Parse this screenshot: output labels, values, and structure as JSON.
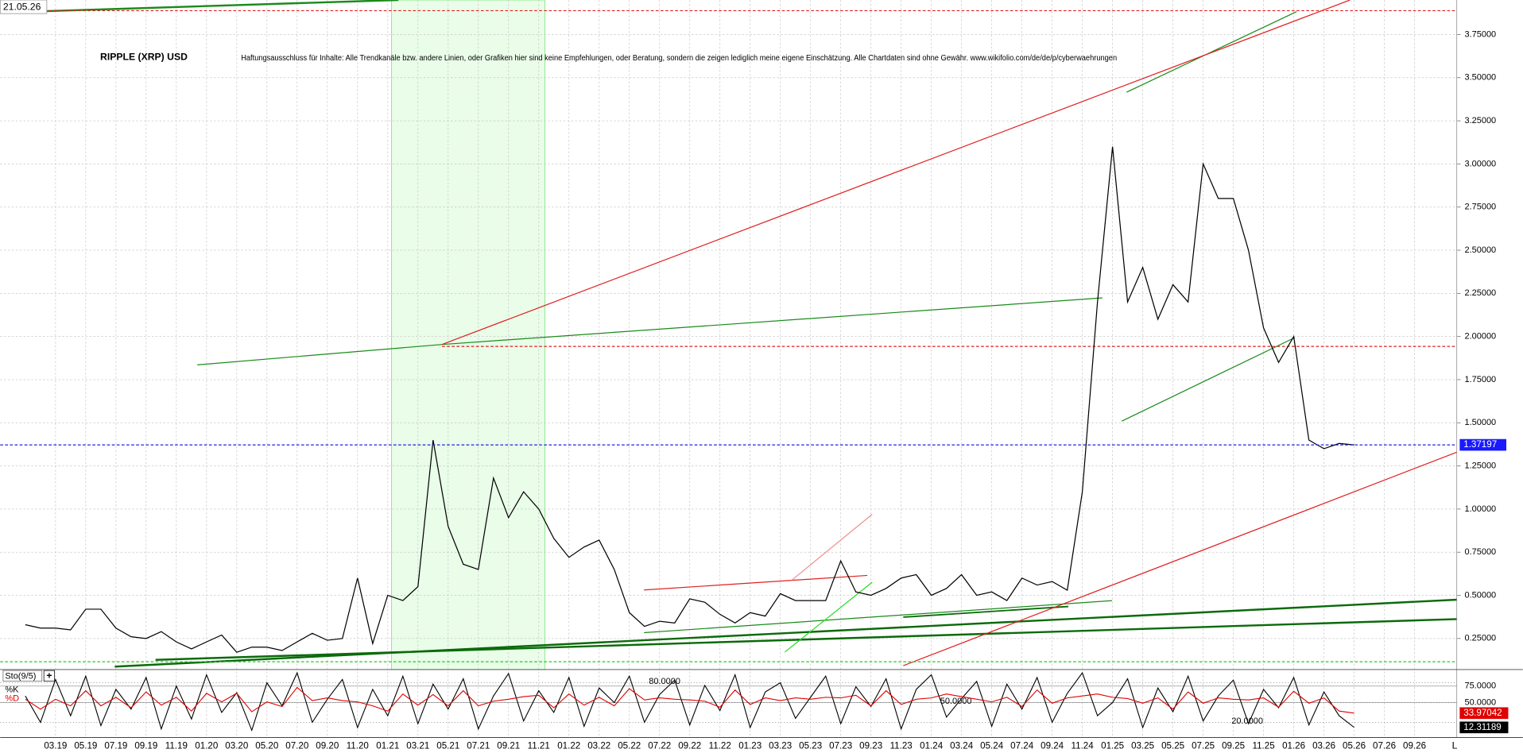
{
  "header": {
    "timestamp": "21.05.26"
  },
  "footer_label": "L",
  "chart_data": [
    {
      "type": "line",
      "title": "RIPPLE (XRP) USD",
      "annotation": "Haftungsausschluss für Inhalte: Alle Trendkanäle bzw. andere Linien, oder Grafiken hier sind keine Empfehlungen, oder Beratung, sondern die zeigen lediglich meine eigene Einschätzung. Alle Chartdaten sind ohne Gewähr.  www.wikifolio.com/de/de/p/cyberwaehrungen",
      "color": "#000000",
      "grid": true,
      "x": [
        "01.19",
        "02.19",
        "03.19",
        "04.19",
        "05.19",
        "06.19",
        "07.19",
        "08.19",
        "09.19",
        "10.19",
        "11.19",
        "12.19",
        "01.20",
        "02.20",
        "03.20",
        "04.20",
        "05.20",
        "06.20",
        "07.20",
        "08.20",
        "09.20",
        "10.20",
        "11.20",
        "12.20",
        "01.21",
        "02.21",
        "03.21",
        "04.21",
        "05.21",
        "06.21",
        "07.21",
        "08.21",
        "09.21",
        "10.21",
        "11.21",
        "12.21",
        "01.22",
        "02.22",
        "03.22",
        "04.22",
        "05.22",
        "06.22",
        "07.22",
        "08.22",
        "09.22",
        "10.22",
        "11.22",
        "12.22",
        "01.23",
        "02.23",
        "03.23",
        "04.23",
        "05.23",
        "06.23",
        "07.23",
        "08.23",
        "09.23",
        "10.23",
        "11.23",
        "12.23",
        "01.24",
        "02.24",
        "03.24",
        "04.24",
        "05.24",
        "06.24",
        "07.24",
        "08.24",
        "09.24",
        "10.24",
        "11.24",
        "12.24",
        "01.25",
        "02.25",
        "03.25",
        "04.25",
        "05.25",
        "06.25",
        "07.25",
        "08.25",
        "09.25",
        "10.25",
        "11.25",
        "12.25",
        "01.26",
        "02.26",
        "03.26",
        "04.26",
        "05.26"
      ],
      "values": [
        0.33,
        0.31,
        0.31,
        0.3,
        0.42,
        0.42,
        0.31,
        0.26,
        0.25,
        0.29,
        0.23,
        0.19,
        0.23,
        0.27,
        0.17,
        0.2,
        0.2,
        0.18,
        0.23,
        0.28,
        0.24,
        0.25,
        0.6,
        0.22,
        0.5,
        0.47,
        0.55,
        1.4,
        0.9,
        0.68,
        0.65,
        1.18,
        0.95,
        1.1,
        1.0,
        0.83,
        0.72,
        0.78,
        0.82,
        0.65,
        0.4,
        0.32,
        0.35,
        0.34,
        0.48,
        0.46,
        0.39,
        0.34,
        0.4,
        0.38,
        0.51,
        0.47,
        0.47,
        0.47,
        0.7,
        0.52,
        0.5,
        0.54,
        0.6,
        0.62,
        0.5,
        0.54,
        0.62,
        0.5,
        0.52,
        0.47,
        0.6,
        0.56,
        0.58,
        0.53,
        1.1,
        2.2,
        3.1,
        2.2,
        2.4,
        2.1,
        2.3,
        2.2,
        3.0,
        2.8,
        2.8,
        2.5,
        2.05,
        1.85,
        2.0,
        1.4,
        1.35,
        1.38,
        1.37197
      ],
      "last_value": 1.37197,
      "ylim": [
        0.07,
        3.95
      ],
      "yticks": [
        {
          "value": 3.75,
          "label": "3.75000"
        },
        {
          "value": 3.5,
          "label": "3.50000"
        },
        {
          "value": 3.25,
          "label": "3.25000"
        },
        {
          "value": 3.0,
          "label": "3.00000"
        },
        {
          "value": 2.75,
          "label": "2.75000"
        },
        {
          "value": 2.5,
          "label": "2.50000"
        },
        {
          "value": 2.25,
          "label": "2.25000"
        },
        {
          "value": 2.0,
          "label": "2.00000"
        },
        {
          "value": 1.75,
          "label": "1.75000"
        },
        {
          "value": 1.5,
          "label": "1.50000"
        },
        {
          "value": 1.25,
          "label": "1.25000"
        },
        {
          "value": 1.0,
          "label": "1.00000"
        },
        {
          "value": 0.75,
          "label": "0.75000"
        },
        {
          "value": 0.5,
          "label": "0.50000"
        },
        {
          "value": 0.25,
          "label": "0.25000"
        }
      ],
      "xticks": [
        "03.19",
        "05.19",
        "07.19",
        "09.19",
        "11.19",
        "01.20",
        "03.20",
        "05.20",
        "07.20",
        "09.20",
        "11.20",
        "01.21",
        "03.21",
        "05.21",
        "07.21",
        "09.21",
        "11.21",
        "01.22",
        "03.22",
        "05.22",
        "07.22",
        "09.22",
        "11.22",
        "01.23",
        "03.23",
        "05.23",
        "07.23",
        "09.23",
        "11.23",
        "01.24",
        "03.24",
        "05.24",
        "07.24",
        "09.24",
        "11.24",
        "01.25",
        "03.25",
        "05.25",
        "07.25",
        "09.25",
        "11.25",
        "01.26",
        "03.26",
        "05.26",
        "07.26",
        "09.26"
      ]
    },
    {
      "type": "stochastic",
      "title": "Sto(9/5)",
      "x": [
        "01.19",
        "02.19",
        "03.19",
        "04.19",
        "05.19",
        "06.19",
        "07.19",
        "08.19",
        "09.19",
        "10.19",
        "11.19",
        "12.19",
        "01.20",
        "02.20",
        "03.20",
        "04.20",
        "05.20",
        "06.20",
        "07.20",
        "08.20",
        "09.20",
        "10.20",
        "11.20",
        "12.20",
        "01.21",
        "02.21",
        "03.21",
        "04.21",
        "05.21",
        "06.21",
        "07.21",
        "08.21",
        "09.21",
        "10.21",
        "11.21",
        "12.21",
        "01.22",
        "02.22",
        "03.22",
        "04.22",
        "05.22",
        "06.22",
        "07.22",
        "08.22",
        "09.22",
        "10.22",
        "11.22",
        "12.22",
        "01.23",
        "02.23",
        "03.23",
        "04.23",
        "05.23",
        "06.23",
        "07.23",
        "08.23",
        "09.23",
        "10.23",
        "11.23",
        "12.23",
        "01.24",
        "02.24",
        "03.24",
        "04.24",
        "05.24",
        "06.24",
        "07.24",
        "08.24",
        "09.24",
        "10.24",
        "11.24",
        "12.24",
        "01.25",
        "02.25",
        "03.25",
        "04.25",
        "05.25",
        "06.25",
        "07.25",
        "08.25",
        "09.25",
        "10.25",
        "11.25",
        "12.25",
        "01.26",
        "02.26",
        "03.26",
        "04.26",
        "05.26"
      ],
      "series": [
        {
          "name": "%K",
          "color": "#000000",
          "last_value": 12.31189,
          "values": [
            60,
            20,
            85,
            30,
            90,
            15,
            70,
            40,
            88,
            10,
            75,
            25,
            92,
            35,
            65,
            8,
            80,
            45,
            95,
            20,
            55,
            85,
            12,
            70,
            30,
            90,
            18,
            78,
            40,
            86,
            10,
            60,
            94,
            22,
            68,
            35,
            88,
            14,
            72,
            50,
            90,
            20,
            62,
            84,
            16,
            76,
            38,
            92,
            12,
            66,
            80,
            26,
            58,
            90,
            18,
            74,
            44,
            86,
            10,
            70,
            92,
            28,
            56,
            82,
            14,
            78,
            40,
            88,
            20,
            64,
            95,
            30,
            50,
            86,
            12,
            72,
            36,
            90,
            22,
            60,
            84,
            18,
            70,
            42,
            88,
            16,
            66,
            30,
            12.31189
          ]
        },
        {
          "name": "%D",
          "color": "#e00000",
          "last_value": 33.97042,
          "values": [
            55,
            40,
            55,
            45,
            68,
            45,
            58,
            42,
            66,
            46,
            58,
            37,
            64,
            51,
            64,
            36,
            51,
            44,
            73,
            53,
            57,
            53,
            51,
            45,
            37,
            63,
            46,
            62,
            45,
            68,
            45,
            52,
            55,
            59,
            61,
            42,
            63,
            46,
            58,
            45,
            71,
            54,
            57,
            55,
            54,
            52,
            43,
            69,
            47,
            57,
            53,
            57,
            55,
            58,
            57,
            61,
            45,
            68,
            47,
            55,
            57,
            63,
            59,
            55,
            51,
            58,
            44,
            69,
            49,
            57,
            60,
            63,
            58,
            56,
            49,
            57,
            40,
            66,
            49,
            57,
            55,
            54,
            57,
            43,
            67,
            49,
            57,
            37,
            33.97042
          ]
        }
      ],
      "ylim": [
        0,
        100
      ],
      "yticks": [
        {
          "value": 75,
          "label": "75.0000"
        },
        {
          "value": 50,
          "label": "50.0000"
        }
      ],
      "levels": [
        {
          "value": 80,
          "label": "80.0000"
        },
        {
          "value": 50,
          "label": "50.0000"
        },
        {
          "value": 20,
          "label": "20.0000"
        }
      ]
    }
  ]
}
